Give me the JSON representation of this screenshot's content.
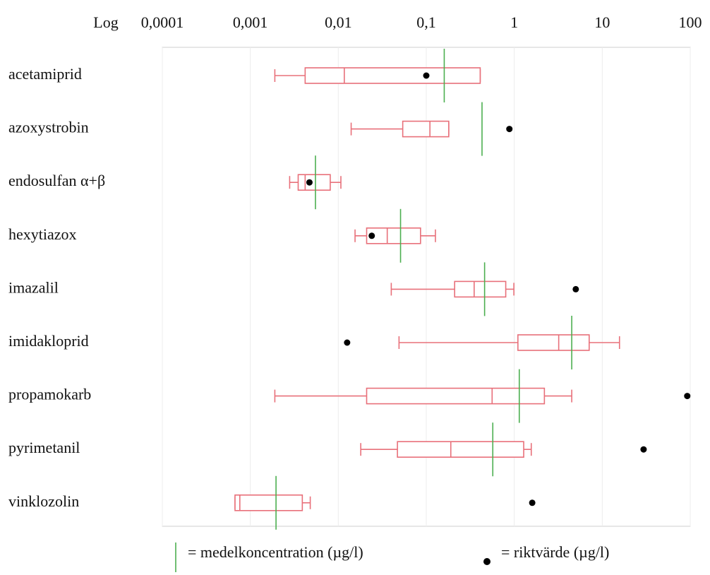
{
  "chart_data": {
    "type": "boxplot",
    "xlabel": "Log",
    "log_scale": true,
    "grid": true,
    "xlim": [
      0.0001,
      100
    ],
    "xticks": [
      {
        "value": 0.0001,
        "label": "0,0001"
      },
      {
        "value": 0.001,
        "label": "0,001"
      },
      {
        "value": 0.01,
        "label": "0,01"
      },
      {
        "value": 0.1,
        "label": "0,1"
      },
      1,
      10,
      100
    ],
    "categories": [
      "acetamiprid",
      "azoxystrobin",
      "endosulfan α+β",
      "hexytiazox",
      "imazalil",
      "imidakloprid",
      "propamokarb",
      "pyrimetanil",
      "vinklozolin"
    ],
    "min": [
      0.0019,
      0.014,
      0.0028,
      0.0155,
      0.04,
      0.049,
      0.0019,
      0.018,
      0.00067
    ],
    "q1": [
      0.0042,
      0.054,
      0.0035,
      0.021,
      0.21,
      1.1,
      0.021,
      0.047,
      0.00067
    ],
    "median": [
      0.0117,
      0.11,
      0.0042,
      0.036,
      0.35,
      3.2,
      0.56,
      0.19,
      0.00076
    ],
    "q3": [
      0.41,
      0.18,
      0.0081,
      0.086,
      0.8,
      7.1,
      2.2,
      1.28,
      0.0039
    ],
    "max": [
      0.41,
      0.18,
      0.0107,
      0.127,
      0.99,
      15.7,
      4.5,
      1.56,
      0.0048
    ],
    "mean": [
      0.16,
      0.43,
      0.0055,
      0.051,
      0.46,
      4.5,
      1.14,
      0.57,
      0.00196
    ],
    "riktvarde": [
      0.1,
      0.88,
      0.0047,
      0.024,
      5.0,
      0.0126,
      92.5,
      29.5,
      1.6
    ],
    "box_color": "#e8707a",
    "mean_color": "#4caf50",
    "dot_color": "#000000",
    "legend": [
      "= medelkoncentration (µg/l)",
      "= riktvärde (µg/l)"
    ]
  }
}
